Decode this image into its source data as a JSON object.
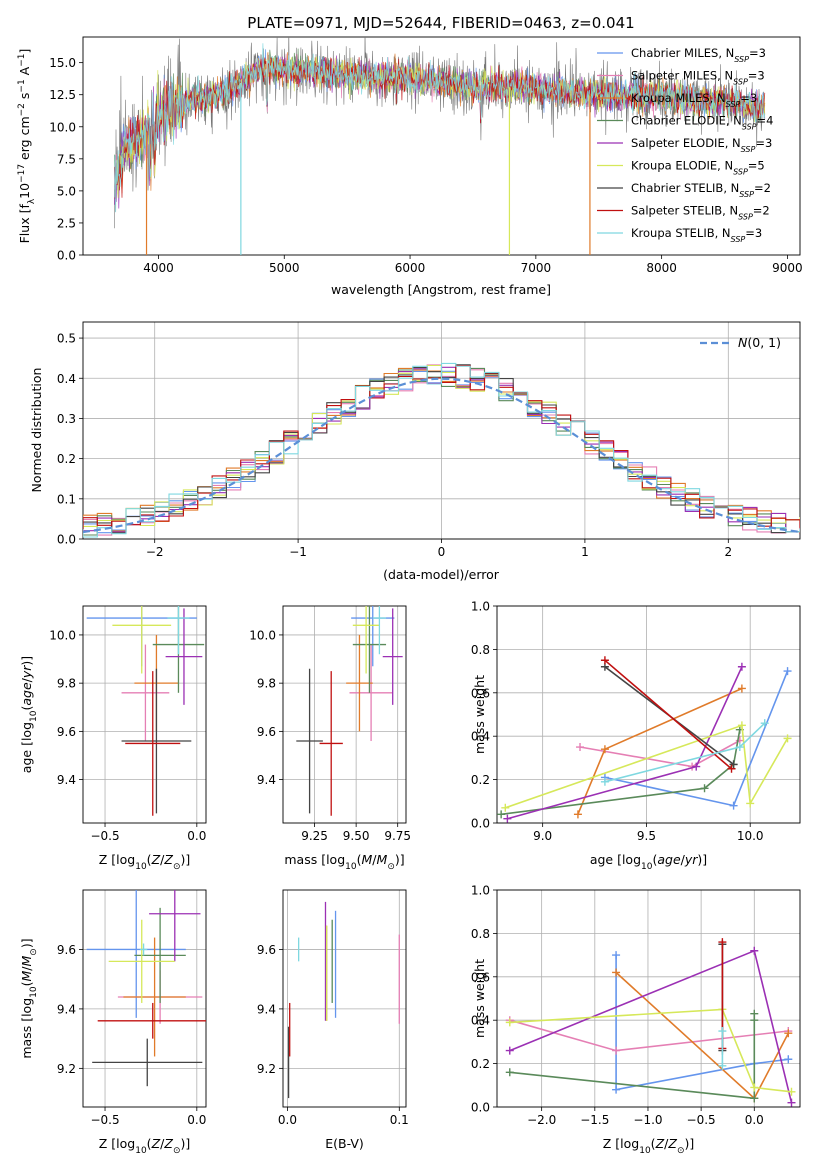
{
  "figure_title": "PLATE=0971, MJD=52644, FIBERID=0463, z=0.041",
  "colors": {
    "Chabrier MILES": "#6495ed",
    "Salpeter MILES": "#e57fb4",
    "Kroupa MILES": "#e07b2a",
    "Chabrier ELODIE": "#5a8a5a",
    "Salpeter ELODIE": "#9b30b4",
    "Kroupa ELODIE": "#d6e85a",
    "Chabrier STELIB": "#444444",
    "Salpeter STELIB": "#c01010",
    "Kroupa STELIB": "#7fd8e0"
  },
  "chart_data": [
    {
      "id": "spectrum",
      "type": "line",
      "title": "PLATE=0971, MJD=52644, FIBERID=0463, z=0.041",
      "xlabel": "wavelength [Angstrom, rest frame]",
      "ylabel": "Flux [f_λ 10^-17 erg cm^-2 s^-1 A^-1]",
      "xlim": [
        3400,
        9100
      ],
      "ylim": [
        0,
        17
      ],
      "xticks": [
        "4000",
        "5000",
        "6000",
        "7000",
        "8000",
        "9000"
      ],
      "yticks": [
        "0.0",
        "2.5",
        "5.0",
        "7.5",
        "10.0",
        "12.5",
        "15.0"
      ],
      "legend": [
        "Chabrier MILES, N_SSP=3",
        "Salpeter MILES, N_SSP=3",
        "Kroupa MILES, N_SSP=3",
        "Chabrier ELODIE, N_SSP=4",
        "Salpeter ELODIE, N_SSP=3",
        "Kroupa ELODIE, N_SSP=5",
        "Chabrier STELIB, N_SSP=2",
        "Salpeter STELIB, N_SSP=2",
        "Kroupa STELIB, N_SSP=3"
      ],
      "legend_position": "top-right",
      "grid": false,
      "continuum": {
        "x": [
          3650,
          3750,
          3900,
          4000,
          4200,
          4400,
          4600,
          4800,
          5000,
          5500,
          6000,
          6500,
          7000,
          7500,
          8000,
          8500,
          8800
        ],
        "y": [
          6.5,
          8.5,
          9.5,
          11.0,
          12.0,
          12.3,
          13.0,
          14.5,
          14.5,
          14.0,
          13.8,
          13.2,
          13.0,
          12.5,
          12.3,
          12.0,
          11.5
        ]
      }
    },
    {
      "id": "residuals",
      "type": "bar",
      "xlabel": "(data-model)/error",
      "ylabel": "Normed distribution",
      "xlim": [
        -2.5,
        2.5
      ],
      "ylim": [
        0,
        0.54
      ],
      "xticks": [
        "−2",
        "−1",
        "0",
        "1",
        "2"
      ],
      "yticks": [
        "0.0",
        "0.1",
        "0.2",
        "0.3",
        "0.4",
        "0.5"
      ],
      "legend": [
        "N(0,1)"
      ],
      "legend_position": "top-right",
      "grid": true,
      "bin_width": 0.1
    },
    {
      "id": "age-vs-Z",
      "type": "scatter",
      "xlabel": "Z [log10(Z/Z⊙)]",
      "ylabel": "age [log10(age/yr)]",
      "xlim": [
        -0.62,
        0.05
      ],
      "ylim": [
        9.22,
        10.12
      ],
      "xticks": [
        "−0.5",
        "0.0"
      ],
      "yticks": [
        "9.4",
        "9.6",
        "9.8",
        "10.0"
      ],
      "grid": true,
      "points": [
        {
          "model": "Chabrier MILES",
          "x": -0.3,
          "xerr": 0.3,
          "y": 10.07,
          "yerr": 0.2
        },
        {
          "model": "Salpeter MILES",
          "x": -0.28,
          "xerr": 0.13,
          "y": 9.76,
          "yerr": 0.2
        },
        {
          "model": "Kroupa MILES",
          "x": -0.22,
          "xerr": 0.12,
          "y": 9.8,
          "yerr": 0.2
        },
        {
          "model": "Chabrier ELODIE",
          "x": -0.1,
          "xerr": 0.14,
          "y": 9.96,
          "yerr": 0.2
        },
        {
          "model": "Salpeter ELODIE",
          "x": -0.07,
          "xerr": 0.1,
          "y": 9.91,
          "yerr": 0.2
        },
        {
          "model": "Kroupa ELODIE",
          "x": -0.3,
          "xerr": 0.16,
          "y": 10.04,
          "yerr": 0.2
        },
        {
          "model": "Chabrier STELIB",
          "x": -0.22,
          "xerr": 0.19,
          "y": 9.56,
          "yerr": 0.3
        },
        {
          "model": "Salpeter STELIB",
          "x": -0.24,
          "xerr": 0.15,
          "y": 9.55,
          "yerr": 0.3
        },
        {
          "model": "Kroupa STELIB",
          "x": -0.1,
          "xerr": 0.06,
          "y": 10.07,
          "yerr": 0.15
        }
      ]
    },
    {
      "id": "age-vs-mass",
      "type": "scatter",
      "xlabel": "mass [log10(M/M⊙)]",
      "ylabel": "",
      "xlim": [
        9.06,
        9.8
      ],
      "ylim": [
        9.22,
        10.12
      ],
      "xticks": [
        "9.25",
        "9.50",
        "9.75"
      ],
      "yticks": [
        "9.4",
        "9.6",
        "9.8",
        "10.0"
      ],
      "grid": true,
      "points": [
        {
          "model": "Chabrier MILES",
          "x": 9.6,
          "xerr": 0.13,
          "y": 10.07,
          "yerr": 0.2
        },
        {
          "model": "Salpeter MILES",
          "x": 9.59,
          "xerr": 0.13,
          "y": 9.76,
          "yerr": 0.2
        },
        {
          "model": "Kroupa MILES",
          "x": 9.52,
          "xerr": 0.08,
          "y": 9.8,
          "yerr": 0.2
        },
        {
          "model": "Chabrier ELODIE",
          "x": 9.58,
          "xerr": 0.1,
          "y": 9.96,
          "yerr": 0.2
        },
        {
          "model": "Salpeter ELODIE",
          "x": 9.72,
          "xerr": 0.06,
          "y": 9.91,
          "yerr": 0.2
        },
        {
          "model": "Kroupa ELODIE",
          "x": 9.56,
          "xerr": 0.08,
          "y": 10.04,
          "yerr": 0.2
        },
        {
          "model": "Chabrier STELIB",
          "x": 9.22,
          "xerr": 0.08,
          "y": 9.56,
          "yerr": 0.3
        },
        {
          "model": "Salpeter STELIB",
          "x": 9.35,
          "xerr": 0.07,
          "y": 9.55,
          "yerr": 0.3
        },
        {
          "model": "Kroupa STELIB",
          "x": 9.64,
          "xerr": 0.04,
          "y": 10.07,
          "yerr": 0.15
        }
      ]
    },
    {
      "id": "massweight-vs-age",
      "type": "line",
      "xlabel": "age [log10(age/yr)]",
      "ylabel": "mass weight",
      "xlim": [
        8.78,
        10.24
      ],
      "ylim": [
        0,
        1
      ],
      "xticks": [
        "9.0",
        "9.5",
        "10.0"
      ],
      "yticks": [
        "0.0",
        "0.2",
        "0.4",
        "0.6",
        "0.8",
        "1.0"
      ],
      "grid": true,
      "series": [
        {
          "model": "Chabrier MILES",
          "x": [
            9.3,
            9.92,
            10.18
          ],
          "y": [
            0.21,
            0.08,
            0.7
          ]
        },
        {
          "model": "Salpeter MILES",
          "x": [
            9.18,
            9.72,
            9.95
          ],
          "y": [
            0.35,
            0.26,
            0.38
          ]
        },
        {
          "model": "Kroupa MILES",
          "x": [
            9.17,
            9.3,
            9.96
          ],
          "y": [
            0.04,
            0.34,
            0.62
          ]
        },
        {
          "model": "Chabrier ELODIE",
          "x": [
            8.8,
            9.78,
            9.92,
            9.95
          ],
          "y": [
            0.04,
            0.16,
            0.27,
            0.43
          ]
        },
        {
          "model": "Salpeter ELODIE",
          "x": [
            8.83,
            9.74,
            9.96
          ],
          "y": [
            0.02,
            0.26,
            0.72
          ]
        },
        {
          "model": "Kroupa ELODIE",
          "x": [
            8.82,
            9.96,
            10.0,
            10.18
          ],
          "y": [
            0.07,
            0.45,
            0.09,
            0.39
          ]
        },
        {
          "model": "Chabrier STELIB",
          "x": [
            9.3,
            9.92
          ],
          "y": [
            0.72,
            0.27
          ]
        },
        {
          "model": "Salpeter STELIB",
          "x": [
            9.3,
            9.91
          ],
          "y": [
            0.75,
            0.25
          ]
        },
        {
          "model": "Kroupa STELIB",
          "x": [
            9.3,
            9.95,
            10.07
          ],
          "y": [
            0.19,
            0.35,
            0.46
          ]
        }
      ]
    },
    {
      "id": "mass-vs-Z",
      "type": "scatter",
      "xlabel": "Z [log10(Z/Z⊙)]",
      "ylabel": "mass [log10(M/M⊙)]",
      "xlim": [
        -0.62,
        0.05
      ],
      "ylim": [
        9.07,
        9.8
      ],
      "xticks": [
        "−0.5",
        "0.0"
      ],
      "yticks": [
        "9.2",
        "9.4",
        "9.6"
      ],
      "grid": true,
      "points": [
        {
          "model": "Chabrier MILES",
          "x": -0.33,
          "xerr": 0.27,
          "y": 9.6,
          "yerr": 0.23
        },
        {
          "model": "Salpeter MILES",
          "x": -0.2,
          "xerr": 0.23,
          "y": 9.44,
          "yerr": 0.09
        },
        {
          "model": "Kroupa MILES",
          "x": -0.23,
          "xerr": 0.17,
          "y": 9.44,
          "yerr": 0.2
        },
        {
          "model": "Chabrier ELODIE",
          "x": -0.2,
          "xerr": 0.14,
          "y": 9.58,
          "yerr": 0.16
        },
        {
          "model": "Salpeter ELODIE",
          "x": -0.12,
          "xerr": 0.14,
          "y": 9.72,
          "yerr": 0.16
        },
        {
          "model": "Kroupa ELODIE",
          "x": -0.3,
          "xerr": 0.18,
          "y": 9.56,
          "yerr": 0.14
        },
        {
          "model": "Chabrier STELIB",
          "x": -0.27,
          "xerr": 0.3,
          "y": 9.22,
          "yerr": 0.08
        },
        {
          "model": "Salpeter STELIB",
          "x": -0.24,
          "xerr": 0.3,
          "y": 9.36,
          "yerr": 0.06
        },
        {
          "model": "Kroupa STELIB",
          "x": -0.29,
          "xerr": 0.02,
          "y": 9.6,
          "yerr": 0.02
        }
      ]
    },
    {
      "id": "mass-vs-ebv",
      "type": "scatter",
      "xlabel": "E(B-V)",
      "ylabel": "",
      "xlim": [
        -0.004,
        0.106
      ],
      "ylim": [
        9.07,
        9.8
      ],
      "xticks": [
        "0.0",
        "0.1"
      ],
      "yticks": [
        "9.2",
        "9.4",
        "9.6"
      ],
      "grid": true,
      "points": [
        {
          "model": "Chabrier MILES",
          "x": 0.043,
          "y": 9.55,
          "yerr": 0.18
        },
        {
          "model": "Salpeter MILES",
          "x": 0.1,
          "y": 9.5,
          "yerr": 0.15
        },
        {
          "model": "Kroupa MILES",
          "x": 0.035,
          "y": 9.52,
          "yerr": 0.16
        },
        {
          "model": "Chabrier ELODIE",
          "x": 0.04,
          "y": 9.56,
          "yerr": 0.14
        },
        {
          "model": "Salpeter ELODIE",
          "x": 0.034,
          "y": 9.56,
          "yerr": 0.2
        },
        {
          "model": "Kroupa ELODIE",
          "x": 0.035,
          "y": 9.52,
          "yerr": 0.16
        },
        {
          "model": "Chabrier STELIB",
          "x": 0.001,
          "y": 9.22,
          "yerr": 0.12
        },
        {
          "model": "Salpeter STELIB",
          "x": 0.002,
          "y": 9.33,
          "yerr": 0.09
        },
        {
          "model": "Kroupa STELIB",
          "x": 0.01,
          "y": 9.6,
          "yerr": 0.04
        }
      ]
    },
    {
      "id": "massweight-vs-Z",
      "type": "line",
      "xlabel": "Z [log10(Z/Z⊙)]",
      "ylabel": "mass weight",
      "xlim": [
        -2.42,
        0.43
      ],
      "ylim": [
        0,
        1
      ],
      "xticks": [
        "−2.0",
        "−1.5",
        "−1.0",
        "−0.5",
        "0.0"
      ],
      "yticks": [
        "0.0",
        "0.2",
        "0.4",
        "0.6",
        "0.8",
        "1.0"
      ],
      "grid": true,
      "series": [
        {
          "model": "Chabrier MILES",
          "x": [
            -1.3,
            -1.3,
            0.0,
            0.32
          ],
          "y": [
            0.7,
            0.08,
            0.2,
            0.22
          ]
        },
        {
          "model": "Salpeter MILES",
          "x": [
            -2.3,
            -1.3,
            0.32
          ],
          "y": [
            0.4,
            0.26,
            0.35
          ]
        },
        {
          "model": "Kroupa MILES",
          "x": [
            -1.3,
            0.0,
            0.32
          ],
          "y": [
            0.62,
            0.04,
            0.34
          ]
        },
        {
          "model": "Chabrier ELODIE",
          "x": [
            -2.3,
            0.0,
            0.0,
            0.0
          ],
          "y": [
            0.16,
            0.04,
            0.43,
            0.4
          ]
        },
        {
          "model": "Salpeter ELODIE",
          "x": [
            -2.3,
            0.0,
            0.35
          ],
          "y": [
            0.26,
            0.72,
            0.02
          ]
        },
        {
          "model": "Kroupa ELODIE",
          "x": [
            -2.3,
            -0.3,
            0.0,
            0.35
          ],
          "y": [
            0.39,
            0.45,
            0.09,
            0.07
          ]
        },
        {
          "model": "Chabrier STELIB",
          "x": [
            -0.3,
            -0.3
          ],
          "y": [
            0.75,
            0.26
          ]
        },
        {
          "model": "Salpeter STELIB",
          "x": [
            -0.3,
            -0.3
          ],
          "y": [
            0.76,
            0.27
          ]
        },
        {
          "model": "Kroupa STELIB",
          "x": [
            -0.3,
            -0.3
          ],
          "y": [
            0.35,
            0.19
          ]
        }
      ]
    }
  ]
}
